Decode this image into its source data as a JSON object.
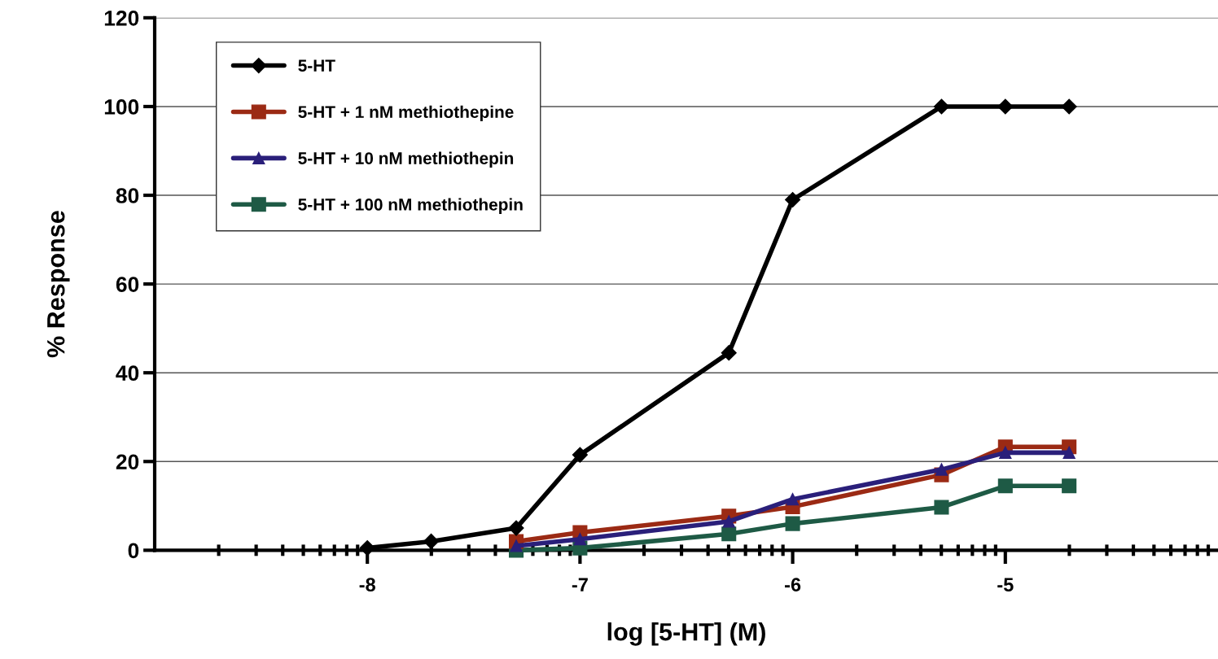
{
  "chart_data": {
    "type": "line",
    "xlabel": "log [5-HT] (M)",
    "ylabel": "% Response",
    "xlim": [
      -9,
      -4
    ],
    "xticks": [
      -8,
      -7,
      -6,
      -5
    ],
    "ylim": [
      0,
      120
    ],
    "yticks": [
      0,
      20,
      40,
      60,
      80,
      100,
      120
    ],
    "grid": "y",
    "legend": "top left",
    "series": [
      {
        "name": "5-HT",
        "color": "#000000",
        "marker": "diamond",
        "x": [
          -8,
          -7.7,
          -7.3,
          -7,
          -6.3,
          -6,
          -5.3,
          -5,
          -4.7
        ],
        "values": [
          0.5,
          2,
          5,
          21.5,
          44.5,
          79,
          100,
          100,
          100
        ]
      },
      {
        "name": "5-HT + 1 nM methiothepine",
        "color": "#9b2a14",
        "marker": "square",
        "x": [
          -7.3,
          -7,
          -6.3,
          -6,
          -5.3,
          -5,
          -4.7
        ],
        "values": [
          2,
          4,
          7.7,
          9.8,
          17,
          23.3,
          23.3
        ]
      },
      {
        "name": "5-HT + 10 nM methiothepin",
        "color": "#2a1f7a",
        "marker": "triangle",
        "x": [
          -7.3,
          -7,
          -6.3,
          -6,
          -5.3,
          -5,
          -4.7
        ],
        "values": [
          1,
          2.5,
          6.5,
          11.5,
          18.2,
          22,
          22
        ]
      },
      {
        "name": "5-HT + 100 nM methiothepin",
        "color": "#1e5a45",
        "marker": "square",
        "x": [
          -7.3,
          -7,
          -6.3,
          -6,
          -5.3,
          -5,
          -4.7
        ],
        "values": [
          0,
          0.5,
          3.7,
          6,
          9.7,
          14.5,
          14.5
        ]
      }
    ]
  }
}
